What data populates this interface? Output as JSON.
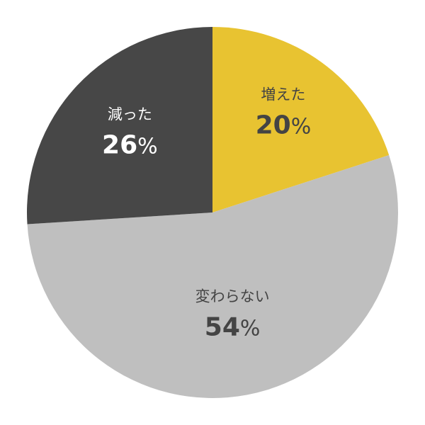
{
  "chart_data": {
    "type": "pie",
    "start": "top",
    "direction": "clockwise",
    "slices": [
      {
        "label": "増えた",
        "value": 20,
        "display": "20",
        "color": "#E8C331",
        "text_color": "#444444"
      },
      {
        "label": "変わらない",
        "value": 54,
        "display": "54",
        "color": "#BFBFBF",
        "text_color": "#444444"
      },
      {
        "label": "減った",
        "value": 26,
        "display": "26",
        "color": "#474747",
        "text_color": "#FFFFFF"
      }
    ],
    "unit": "%"
  }
}
